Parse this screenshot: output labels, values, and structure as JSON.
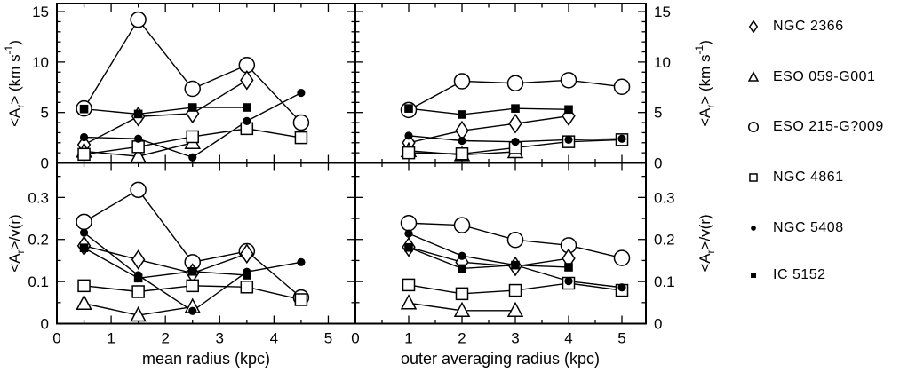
{
  "figure": {
    "background": "#ffffff",
    "ink_color": "#000000",
    "xlabel_left": "mean radius (kpc)",
    "xlabel_right": "outer averaging radius (kpc)",
    "ylabel_top": [
      [
        "t",
        "<A"
      ],
      [
        "sub",
        "r"
      ],
      [
        "t",
        "> (km s"
      ],
      [
        "sup",
        "-1"
      ],
      [
        "t",
        ")"
      ]
    ],
    "ylabel_bottom": [
      [
        "t",
        "<A"
      ],
      [
        "sub",
        "r"
      ],
      [
        "t",
        ">/v(r)"
      ]
    ]
  },
  "legend": {
    "items": [
      {
        "marker": "diamond-open",
        "label": "NGC 2366"
      },
      {
        "marker": "triangle-open",
        "label": "ESO 059-G001"
      },
      {
        "marker": "circle-open",
        "label": "ESO 215-G?009"
      },
      {
        "marker": "square-open",
        "label": "NGC 4861"
      },
      {
        "marker": "circle-filled",
        "label": "NGC 5408"
      },
      {
        "marker": "square-filled",
        "label": "IC 5152"
      }
    ]
  },
  "chart_data": {
    "type": "line",
    "grid": false,
    "legend_position": "right",
    "panels": [
      {
        "name": "top-left",
        "xlim": [
          0,
          5.5
        ],
        "ylim": [
          0,
          15.8
        ],
        "xticks": [
          0,
          1,
          2,
          3,
          4,
          5
        ],
        "xtick_labels": [
          "0",
          "1",
          "2",
          "3",
          "4",
          "5"
        ],
        "show_xtick_labels": false,
        "yticks": [
          0,
          5,
          10,
          15
        ],
        "ytick_labels": [
          "0",
          "5",
          "10",
          "15"
        ],
        "ylabel_side": "left",
        "x_minor": 0.5,
        "y_minor": 1,
        "series": [
          {
            "name": "ESO 215-G?009",
            "marker": "circle-open",
            "points": [
              [
                0.5,
                5.4
              ],
              [
                1.5,
                14.2
              ],
              [
                2.5,
                7.35
              ],
              [
                3.5,
                9.7
              ],
              [
                4.5,
                4.0
              ]
            ]
          },
          {
            "name": "NGC 2366",
            "marker": "diamond-open",
            "points": [
              [
                0.5,
                1.8
              ],
              [
                1.5,
                4.6
              ],
              [
                2.5,
                4.9
              ],
              [
                3.5,
                8.2
              ]
            ]
          },
          {
            "name": "ESO 059-G001",
            "marker": "triangle-open",
            "points": [
              [
                0.5,
                1.15
              ],
              [
                1.5,
                0.65
              ],
              [
                2.5,
                2.0
              ]
            ]
          },
          {
            "name": "NGC 4861",
            "marker": "square-open",
            "points": [
              [
                0.5,
                0.85
              ],
              [
                1.5,
                1.6
              ],
              [
                2.5,
                2.6
              ],
              [
                3.5,
                3.4
              ],
              [
                4.5,
                2.5
              ]
            ]
          },
          {
            "name": "NGC 5408",
            "marker": "circle-filled",
            "points": [
              [
                0.5,
                2.55
              ],
              [
                1.5,
                2.4
              ],
              [
                2.5,
                0.55
              ],
              [
                3.5,
                4.15
              ],
              [
                4.5,
                6.95
              ]
            ]
          },
          {
            "name": "IC 5152",
            "marker": "square-filled",
            "points": [
              [
                0.5,
                5.35
              ],
              [
                1.5,
                4.85
              ],
              [
                2.5,
                5.5
              ],
              [
                3.5,
                5.5
              ]
            ]
          }
        ]
      },
      {
        "name": "top-right",
        "xlim": [
          0,
          5.45
        ],
        "ylim": [
          0,
          15.8
        ],
        "xticks": [
          0,
          1,
          2,
          3,
          4,
          5
        ],
        "xtick_labels": [
          "0",
          "1",
          "2",
          "3",
          "4",
          "5"
        ],
        "show_xtick_labels": false,
        "yticks": [
          0,
          5,
          10,
          15
        ],
        "ytick_labels": [
          "0",
          "5",
          "10",
          "15"
        ],
        "ylabel_side": "right",
        "x_minor": 0.5,
        "y_minor": 1,
        "series": [
          {
            "name": "ESO 215-G?009",
            "marker": "circle-open",
            "points": [
              [
                1,
                5.25
              ],
              [
                2,
                8.1
              ],
              [
                3,
                7.9
              ],
              [
                4,
                8.2
              ],
              [
                5,
                7.55
              ]
            ]
          },
          {
            "name": "NGC 2366",
            "marker": "diamond-open",
            "points": [
              [
                1,
                2.0
              ],
              [
                2,
                3.2
              ],
              [
                3,
                3.9
              ],
              [
                4,
                4.65
              ]
            ]
          },
          {
            "name": "ESO 059-G001",
            "marker": "triangle-open",
            "points": [
              [
                1,
                1.2
              ],
              [
                2,
                0.8
              ],
              [
                3,
                1.1
              ]
            ]
          },
          {
            "name": "NGC 4861",
            "marker": "square-open",
            "points": [
              [
                1,
                1.0
              ],
              [
                2,
                0.9
              ],
              [
                3,
                1.5
              ],
              [
                4,
                2.1
              ],
              [
                5,
                2.3
              ]
            ]
          },
          {
            "name": "NGC 5408",
            "marker": "circle-filled",
            "points": [
              [
                1,
                2.7
              ],
              [
                2,
                2.2
              ],
              [
                3,
                2.1
              ],
              [
                4,
                2.3
              ],
              [
                5,
                2.4
              ]
            ]
          },
          {
            "name": "IC 5152",
            "marker": "square-filled",
            "points": [
              [
                1,
                5.4
              ],
              [
                2,
                4.8
              ],
              [
                3,
                5.4
              ],
              [
                4,
                5.3
              ]
            ]
          }
        ]
      },
      {
        "name": "bottom-left",
        "xlim": [
          0,
          5.5
        ],
        "ylim": [
          0,
          0.382
        ],
        "xticks": [
          0,
          1,
          2,
          3,
          4,
          5
        ],
        "xtick_labels": [
          "0",
          "1",
          "2",
          "3",
          "4",
          "5"
        ],
        "show_xtick_labels": true,
        "yticks": [
          0,
          0.1,
          0.2,
          0.3
        ],
        "ytick_labels": [
          "0",
          "0.1",
          "0.2",
          "0.3"
        ],
        "ylabel_side": "left",
        "x_minor": 0.5,
        "y_minor": 0.05,
        "series": [
          {
            "name": "ESO 215-G?009",
            "marker": "circle-open",
            "points": [
              [
                0.5,
                0.242
              ],
              [
                1.5,
                0.318
              ],
              [
                2.5,
                0.146
              ],
              [
                3.5,
                0.172
              ],
              [
                4.5,
                0.062
              ]
            ]
          },
          {
            "name": "NGC 2366",
            "marker": "diamond-open",
            "points": [
              [
                0.5,
                0.185
              ],
              [
                1.5,
                0.152
              ],
              [
                2.5,
                0.12
              ],
              [
                3.5,
                0.166
              ]
            ]
          },
          {
            "name": "ESO 059-G001",
            "marker": "triangle-open",
            "points": [
              [
                0.5,
                0.048
              ],
              [
                1.5,
                0.02
              ],
              [
                2.5,
                0.04
              ]
            ]
          },
          {
            "name": "NGC 4861",
            "marker": "square-open",
            "points": [
              [
                0.5,
                0.09
              ],
              [
                1.5,
                0.076
              ],
              [
                2.5,
                0.09
              ],
              [
                3.5,
                0.087
              ],
              [
                4.5,
                0.057
              ]
            ]
          },
          {
            "name": "NGC 5408",
            "marker": "circle-filled",
            "points": [
              [
                0.5,
                0.216
              ],
              [
                1.5,
                0.115
              ],
              [
                2.5,
                0.03
              ],
              [
                3.5,
                0.123
              ],
              [
                4.5,
                0.146
              ]
            ]
          },
          {
            "name": "IC 5152",
            "marker": "square-filled",
            "points": [
              [
                0.5,
                0.18
              ],
              [
                1.5,
                0.108
              ],
              [
                2.5,
                0.124
              ],
              [
                3.5,
                0.115
              ]
            ]
          }
        ]
      },
      {
        "name": "bottom-right",
        "xlim": [
          0,
          5.45
        ],
        "ylim": [
          0,
          0.382
        ],
        "xticks": [
          0,
          1,
          2,
          3,
          4,
          5
        ],
        "xtick_labels": [
          "0",
          "1",
          "2",
          "3",
          "4",
          "5"
        ],
        "show_xtick_labels": true,
        "yticks": [
          0,
          0.1,
          0.2,
          0.3
        ],
        "ytick_labels": [
          "0",
          "0.1",
          "0.2",
          "0.3"
        ],
        "ylabel_side": "right",
        "x_minor": 0.5,
        "y_minor": 0.05,
        "series": [
          {
            "name": "ESO 215-G?009",
            "marker": "circle-open",
            "points": [
              [
                1,
                0.239
              ],
              [
                2,
                0.234
              ],
              [
                3,
                0.199
              ],
              [
                4,
                0.186
              ],
              [
                5,
                0.156
              ]
            ]
          },
          {
            "name": "NGC 2366",
            "marker": "diamond-open",
            "points": [
              [
                1,
                0.182
              ],
              [
                2,
                0.146
              ],
              [
                3,
                0.136
              ],
              [
                4,
                0.155
              ]
            ]
          },
          {
            "name": "ESO 059-G001",
            "marker": "triangle-open",
            "points": [
              [
                1,
                0.049
              ],
              [
                2,
                0.031
              ],
              [
                3,
                0.031
              ]
            ]
          },
          {
            "name": "NGC 4861",
            "marker": "square-open",
            "points": [
              [
                1,
                0.092
              ],
              [
                2,
                0.071
              ],
              [
                3,
                0.079
              ],
              [
                4,
                0.096
              ],
              [
                5,
                0.079
              ]
            ]
          },
          {
            "name": "NGC 5408",
            "marker": "circle-filled",
            "points": [
              [
                1,
                0.214
              ],
              [
                2,
                0.161
              ],
              [
                3,
                0.139
              ],
              [
                4,
                0.101
              ],
              [
                5,
                0.086
              ]
            ]
          },
          {
            "name": "IC 5152",
            "marker": "square-filled",
            "points": [
              [
                1,
                0.181
              ],
              [
                2,
                0.131
              ],
              [
                3,
                0.139
              ],
              [
                4,
                0.134
              ]
            ]
          }
        ]
      }
    ]
  }
}
